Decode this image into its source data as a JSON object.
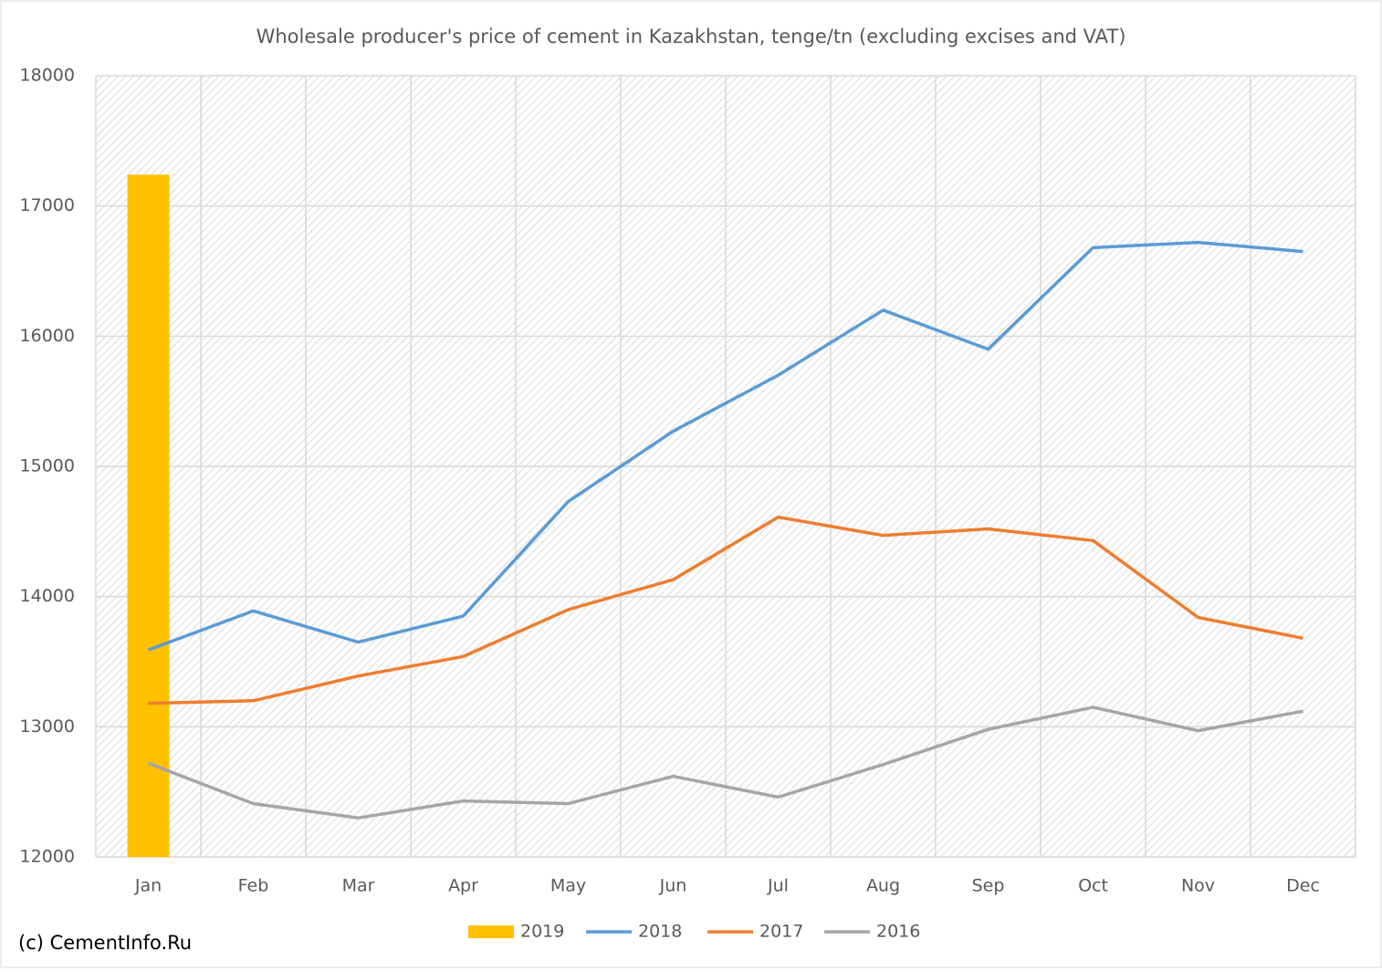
{
  "chart_data": {
    "type": "line",
    "title": "Wholesale producer's price of cement in Kazakhstan, tenge/tn (excluding excises and VAT)",
    "categories": [
      "Jan",
      "Feb",
      "Mar",
      "Apr",
      "May",
      "Jun",
      "Jul",
      "Aug",
      "Sep",
      "Oct",
      "Nov",
      "Dec"
    ],
    "series": [
      {
        "name": "2019",
        "type": "bar",
        "color": "#ffc000",
        "values": [
          17240,
          null,
          null,
          null,
          null,
          null,
          null,
          null,
          null,
          null,
          null,
          null
        ]
      },
      {
        "name": "2018",
        "color": "#5b9bd5",
        "values": [
          13590,
          13890,
          13650,
          13850,
          14730,
          15270,
          15700,
          16200,
          15900,
          16680,
          16720,
          16650
        ]
      },
      {
        "name": "2017",
        "color": "#ed7d31",
        "values": [
          13180,
          13200,
          13390,
          13540,
          13900,
          14130,
          14610,
          14470,
          14520,
          14430,
          13840,
          13680
        ]
      },
      {
        "name": "2016",
        "color": "#a5a5a5",
        "values": [
          12720,
          12410,
          12300,
          12430,
          12410,
          12620,
          12460,
          12710,
          12980,
          13150,
          12970,
          13120
        ]
      }
    ],
    "ylim": [
      12000,
      18000
    ],
    "yticks": [
      12000,
      13000,
      14000,
      15000,
      16000,
      17000,
      18000
    ],
    "grid": true,
    "legend": "bottom",
    "source": "(c) CementInfo.Ru"
  }
}
